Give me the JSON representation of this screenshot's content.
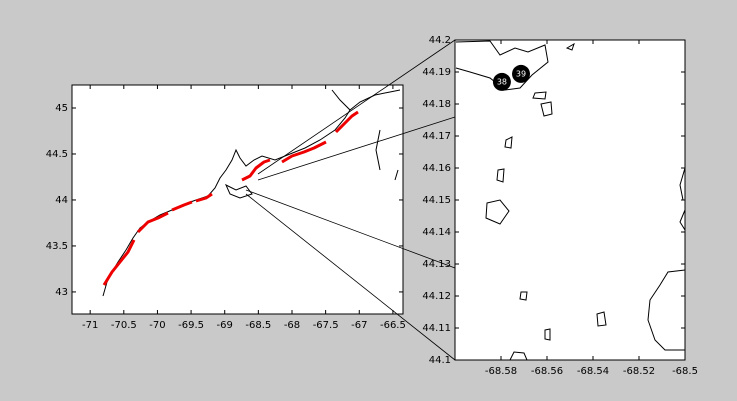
{
  "chart_data": [
    {
      "type": "map",
      "xlim": [
        -71.27,
        -66.35
      ],
      "ylim": [
        42.76,
        45.25
      ],
      "xticks": [
        -71,
        -70.5,
        -70,
        -69.5,
        -69,
        -68.5,
        -68,
        -67.5,
        -67,
        -66.5
      ],
      "yticks": [
        43,
        43.5,
        44,
        44.5,
        45
      ]
    },
    {
      "type": "scatter",
      "xlim": [
        -68.6,
        -68.5
      ],
      "ylim": [
        44.1,
        44.2
      ],
      "xticks": [
        -68.58,
        -68.56,
        -68.54,
        -68.52,
        -68.5
      ],
      "yticks": [
        44.1,
        44.11,
        44.12,
        44.13,
        44.14,
        44.15,
        44.16,
        44.17,
        44.18,
        44.19,
        44.2
      ],
      "x": [
        -68.5796,
        -68.5713
      ],
      "y": [
        44.1869,
        44.1894
      ],
      "labels": [
        "38",
        "39"
      ]
    }
  ]
}
